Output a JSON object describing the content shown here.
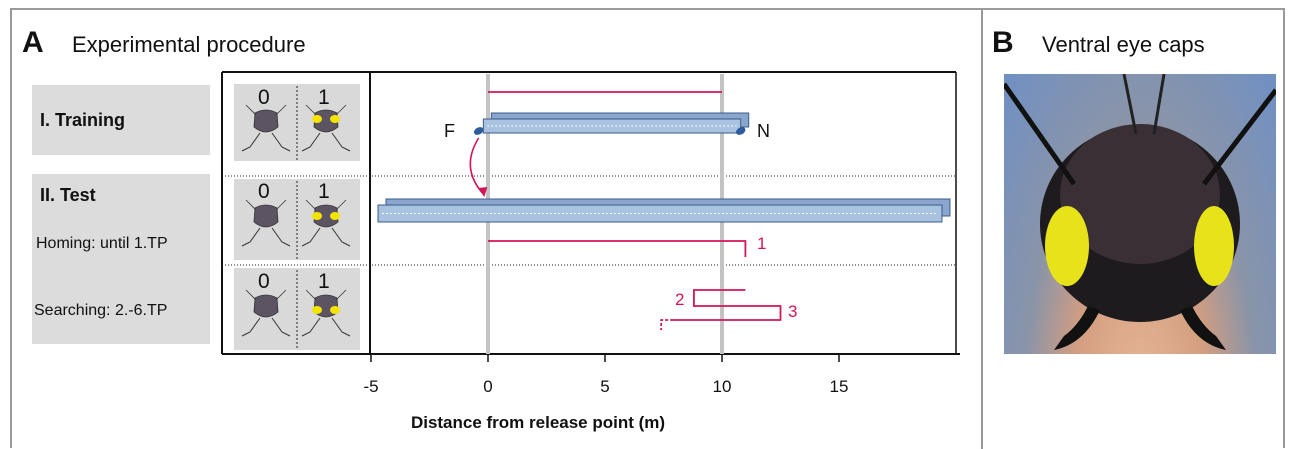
{
  "panel_a": {
    "letter": "A",
    "title": "Experimental procedure"
  },
  "panel_b": {
    "letter": "B",
    "title": "Ventral eye caps"
  },
  "rows": [
    {
      "title": "I. Training",
      "subtitle": "",
      "left_digit": "0",
      "right_digit": "1"
    },
    {
      "title": "II. Test",
      "subtitle": "Homing: until 1.TP",
      "left_digit": "0",
      "right_digit": "1"
    },
    {
      "title": "",
      "subtitle": "Searching: 2.-6.TP",
      "left_digit": "0",
      "right_digit": "1"
    }
  ],
  "colors": {
    "path": "#d4145a",
    "channel": "#a9c2e0",
    "channel_edge": "#3b5b8a",
    "marker": "#2e5a9e",
    "gridline": "#c3c3c3"
  },
  "chart_data": {
    "type": "diagram",
    "xlabel": "Distance from release point (m)",
    "xlim": [
      -5,
      20
    ],
    "xticks": [
      -5,
      0,
      5,
      10,
      15
    ],
    "gridlines_at": [
      0,
      10
    ],
    "feeder_label": "F",
    "nest_label": "N",
    "training_channel": {
      "from": -0.2,
      "to": 10.8
    },
    "test_channel": {
      "from": -4.7,
      "to": 19.4
    },
    "training_run": {
      "from": 0,
      "to": 10
    },
    "homing_run": {
      "from": 0,
      "to": 11,
      "turn_label": "1"
    },
    "search_turns": [
      {
        "label": "2",
        "at": 8.8
      },
      {
        "label": "3",
        "at": 12.5
      }
    ],
    "search_first_return": 11,
    "search_dashed_to": 7.4
  }
}
